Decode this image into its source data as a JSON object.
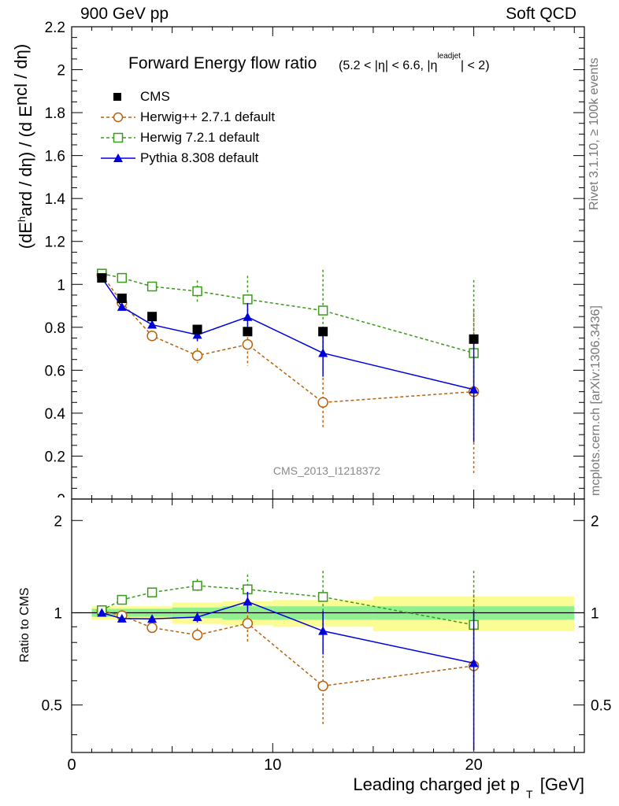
{
  "header": {
    "left": "900 GeV pp",
    "right": "Soft QCD"
  },
  "side": {
    "rivet": "Rivet 3.1.10, ≥ 100k events",
    "mcplots": "mcplots.cern.ch [arXiv:1306.3436]"
  },
  "chart_data": {
    "type": "scatter",
    "title": "Forward Energy flow ratio",
    "title_cut": "(5.2 < |η| < 6.6, |η^leadjet| < 2)",
    "analysis_label": "CMS_2013_I1218372",
    "xlabel": "Leading charged jet p_T [GeV]",
    "ylabel": "(dE^hard / dη) / (d E^incl / dη)",
    "ratio_ylabel": "Ratio to CMS",
    "xlim": [
      0,
      25.5
    ],
    "ylim": [
      0,
      2.2
    ],
    "ratio_ylim": [
      0.35,
      2.35
    ],
    "x_ticks": [
      "0",
      "10",
      "20"
    ],
    "y_ticks": [
      "0",
      "0.2",
      "0.4",
      "0.6",
      "0.8",
      "1",
      "1.2",
      "1.4",
      "1.6",
      "1.8",
      "2",
      "2.2"
    ],
    "ratio_ticks": [
      "0.5",
      "1",
      "2"
    ],
    "x": [
      1.5,
      2.5,
      4.0,
      6.25,
      8.75,
      12.5,
      20.0
    ],
    "x_bin_edges": [
      1.0,
      2.0,
      3.0,
      5.0,
      7.5,
      10.0,
      15.0,
      25.0
    ],
    "series": [
      {
        "name": "CMS",
        "color": "#000000",
        "marker": "square-filled",
        "values": [
          1.03,
          0.935,
          0.85,
          0.79,
          0.78,
          0.78,
          0.745
        ]
      },
      {
        "name": "Herwig++ 2.7.1 default",
        "color": "#b8620e",
        "marker": "circle-open",
        "dash": true,
        "values": [
          1.045,
          0.915,
          0.76,
          0.668,
          0.72,
          0.45,
          0.5
        ],
        "err": [
          0.01,
          0.015,
          0.02,
          0.035,
          0.1,
          0.115,
          0.38
        ],
        "ratio": [
          1.015,
          0.979,
          0.894,
          0.846,
          0.923,
          0.577,
          0.671
        ]
      },
      {
        "name": "Herwig 7.2.1 default",
        "color": "#3a9a1a",
        "marker": "square-open",
        "dash": true,
        "values": [
          1.05,
          1.03,
          0.99,
          0.968,
          0.93,
          0.878,
          0.68
        ],
        "err": [
          0.01,
          0.012,
          0.02,
          0.05,
          0.11,
          0.19,
          0.34
        ],
        "ratio": [
          1.019,
          1.102,
          1.165,
          1.225,
          1.192,
          1.126,
          0.913
        ]
      },
      {
        "name": "Pythia 8.308 default",
        "color": "#0000dd",
        "marker": "triangle-filled",
        "values": [
          1.03,
          0.895,
          0.812,
          0.765,
          0.848,
          0.68,
          0.51
        ],
        "err": [
          0.01,
          0.012,
          0.018,
          0.03,
          0.065,
          0.11,
          0.245
        ],
        "ratio": [
          1.0,
          0.957,
          0.955,
          0.968,
          1.087,
          0.872,
          0.685
        ]
      }
    ],
    "ratio_band_inner": [
      0.03,
      0.03,
      0.03,
      0.04,
      0.05,
      0.05,
      0.05
    ],
    "ratio_band_outer": [
      0.05,
      0.05,
      0.05,
      0.08,
      0.09,
      0.1,
      0.13
    ],
    "band_colors": {
      "inner": "#90f090",
      "outer": "#fcfc94"
    },
    "legend_placement": "top-left",
    "grid": false
  }
}
